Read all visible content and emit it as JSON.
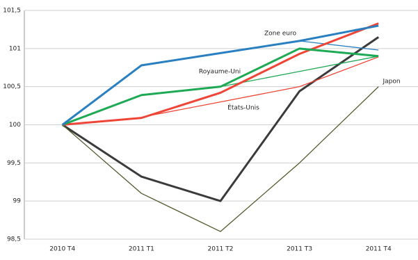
{
  "chart_data": {
    "type": "line",
    "categories": [
      "2010 T4",
      "2011 T1",
      "2011 T2",
      "2011 T3",
      "2011 T4"
    ],
    "series": [
      {
        "color": "#3b3b3b",
        "width": 3,
        "values": [
          100,
          99.32,
          99.0,
          100.44,
          101.15
        ]
      },
      {
        "name": "Japon",
        "color": "#4f5a2a",
        "width": 1.3,
        "values": [
          100,
          99.1,
          98.6,
          99.5,
          100.5
        ]
      },
      {
        "color": "#ef4536",
        "width": 1.3,
        "values": [
          null,
          100.1,
          100.3,
          100.5,
          100.89
        ]
      },
      {
        "color": "#1eaa55",
        "width": 1.3,
        "values": [
          null,
          null,
          100.5,
          100.7,
          100.9
        ]
      },
      {
        "color": "#2a7fc0",
        "width": 1.3,
        "values": [
          null,
          null,
          null,
          101.1,
          100.98
        ]
      },
      {
        "name": "États-Unis",
        "color": "#ef4536",
        "width": 3,
        "values": [
          100,
          100.09,
          100.42,
          100.93,
          101.33
        ]
      },
      {
        "name": "Royaume-Uni",
        "color": "#1eaa55",
        "width": 3,
        "values": [
          100,
          100.39,
          100.5,
          101.0,
          100.9
        ]
      },
      {
        "name": "Zone euro",
        "color": "#2a7fc0",
        "width": 3,
        "values": [
          100,
          100.78,
          100.94,
          101.1,
          101.3
        ]
      }
    ],
    "ylim": [
      98.5,
      101.5
    ],
    "yticks": [
      {
        "value": 98.5,
        "label": "98,5"
      },
      99,
      {
        "value": 99.5,
        "label": "99,5"
      },
      100,
      {
        "value": 100.5,
        "label": "100,5"
      },
      101,
      {
        "value": 101.5,
        "label": "101,5"
      }
    ],
    "grid": true
  }
}
